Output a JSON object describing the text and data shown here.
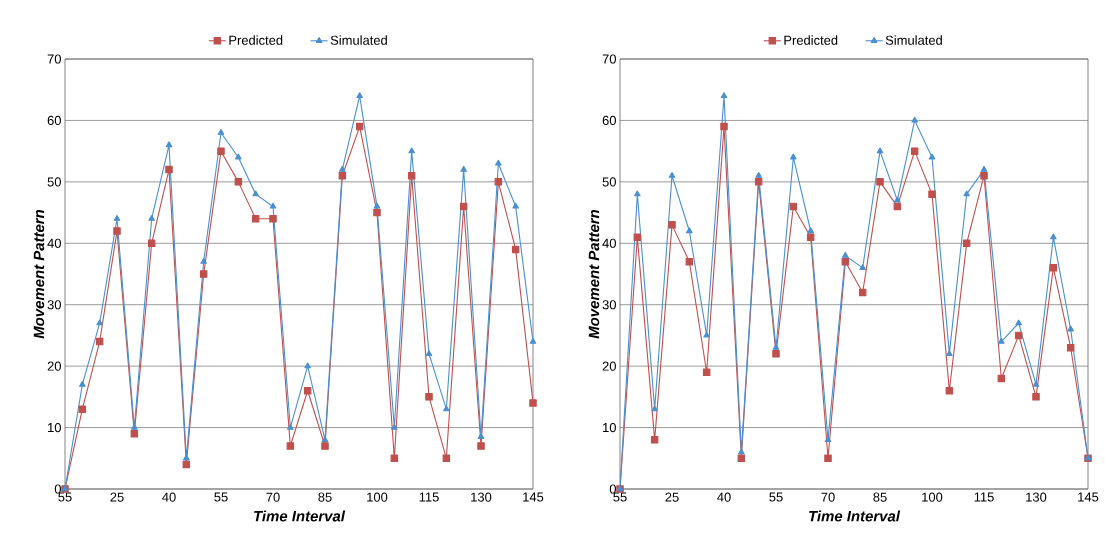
{
  "chart_data": [
    {
      "type": "line",
      "xlabel": "Time Interval",
      "ylabel": "Movement Pattern",
      "categories": [
        "55",
        null,
        null,
        "25",
        null,
        null,
        "40",
        null,
        null,
        "55",
        null,
        null,
        "70",
        null,
        null,
        "85",
        null,
        null,
        "100",
        null,
        null,
        "115",
        null,
        null,
        "130",
        null,
        null,
        "145"
      ],
      "series": [
        {
          "name": "Predicted",
          "color": "#c0504d",
          "marker": "square",
          "values": [
            0,
            13,
            24,
            42,
            9,
            40,
            52,
            4,
            35,
            55,
            50,
            44,
            44,
            7,
            16,
            7,
            51,
            59,
            45,
            5,
            51,
            15,
            5,
            46,
            7,
            50,
            39,
            14
          ]
        },
        {
          "name": "Simulated",
          "color": "#4a90d0",
          "marker": "triangle",
          "values": [
            0,
            17,
            27,
            44,
            10,
            44,
            56,
            5,
            37,
            58,
            54,
            48,
            46,
            10,
            20,
            8,
            52,
            64,
            46,
            10,
            55,
            22,
            13,
            52,
            8.5,
            53,
            46,
            24
          ]
        }
      ],
      "ylim": [
        0,
        70
      ],
      "yticks": [
        0,
        10,
        20,
        30,
        40,
        50,
        60,
        70
      ],
      "grid": "y",
      "legend": "top",
      "line_style": "solid"
    },
    {
      "type": "line",
      "xlabel": "Time Interval",
      "ylabel": "Movement Pattern",
      "categories": [
        "55",
        null,
        null,
        "25",
        null,
        null,
        "40",
        null,
        null,
        "55",
        null,
        null,
        "70",
        null,
        null,
        "85",
        null,
        null,
        "100",
        null,
        null,
        "115",
        null,
        null,
        "130",
        null,
        null,
        "145"
      ],
      "series": [
        {
          "name": "Predicted",
          "color": "#c0504d",
          "marker": "square",
          "values": [
            0,
            41,
            8,
            43,
            37,
            19,
            59,
            5,
            50,
            22,
            46,
            41,
            5,
            37,
            32,
            50,
            46,
            55,
            48,
            16,
            40,
            51,
            18,
            25,
            15,
            36,
            23,
            5
          ]
        },
        {
          "name": "Simulated",
          "color": "#4a90d0",
          "marker": "triangle",
          "values": [
            0,
            48,
            13,
            51,
            42,
            25,
            64,
            6,
            51,
            23,
            54,
            42,
            8,
            38,
            36,
            55,
            47,
            60,
            54,
            22,
            48,
            52,
            24,
            27,
            17,
            41,
            26,
            5
          ]
        }
      ],
      "ylim": [
        0,
        70
      ],
      "yticks": [
        0,
        10,
        20,
        30,
        40,
        50,
        60,
        70
      ],
      "grid": "y",
      "legend": "top",
      "line_style": "solid"
    }
  ]
}
